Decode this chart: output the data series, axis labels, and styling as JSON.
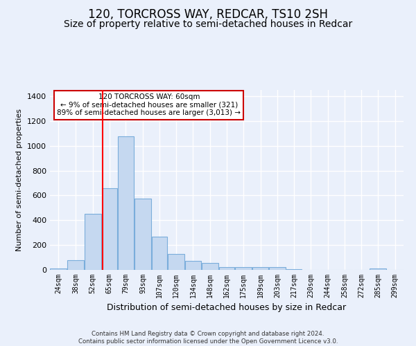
{
  "title": "120, TORCROSS WAY, REDCAR, TS10 2SH",
  "subtitle": "Size of property relative to semi-detached houses in Redcar",
  "xlabel": "Distribution of semi-detached houses by size in Redcar",
  "ylabel": "Number of semi-detached properties",
  "footer_line1": "Contains HM Land Registry data © Crown copyright and database right 2024.",
  "footer_line2": "Contains public sector information licensed under the Open Government Licence v3.0.",
  "annotation_title": "120 TORCROSS WAY: 60sqm",
  "annotation_line2": "← 9% of semi-detached houses are smaller (321)",
  "annotation_line3": "89% of semi-detached houses are larger (3,013) →",
  "bar_color": "#c5d8f0",
  "bar_edge_color": "#7aaddb",
  "red_line_x": 60,
  "categories": [
    "24sqm",
    "38sqm",
    "52sqm",
    "65sqm",
    "79sqm",
    "93sqm",
    "107sqm",
    "120sqm",
    "134sqm",
    "148sqm",
    "162sqm",
    "175sqm",
    "189sqm",
    "203sqm",
    "217sqm",
    "230sqm",
    "244sqm",
    "258sqm",
    "272sqm",
    "285sqm",
    "299sqm"
  ],
  "bin_edges": [
    17,
    31,
    45,
    59,
    72,
    86,
    100,
    113,
    127,
    141,
    155,
    168,
    182,
    196,
    210,
    223,
    237,
    251,
    265,
    278,
    292,
    306
  ],
  "values": [
    10,
    80,
    450,
    660,
    1075,
    575,
    270,
    130,
    70,
    55,
    20,
    20,
    20,
    20,
    5,
    0,
    0,
    0,
    0,
    10,
    0
  ],
  "ylim": [
    0,
    1450
  ],
  "yticks": [
    0,
    200,
    400,
    600,
    800,
    1000,
    1200,
    1400
  ],
  "background_color": "#eaf0fb",
  "grid_color": "#ffffff",
  "title_fontsize": 12,
  "subtitle_fontsize": 10,
  "annotation_box_color": "#ffffff",
  "annotation_box_edge": "#cc0000"
}
